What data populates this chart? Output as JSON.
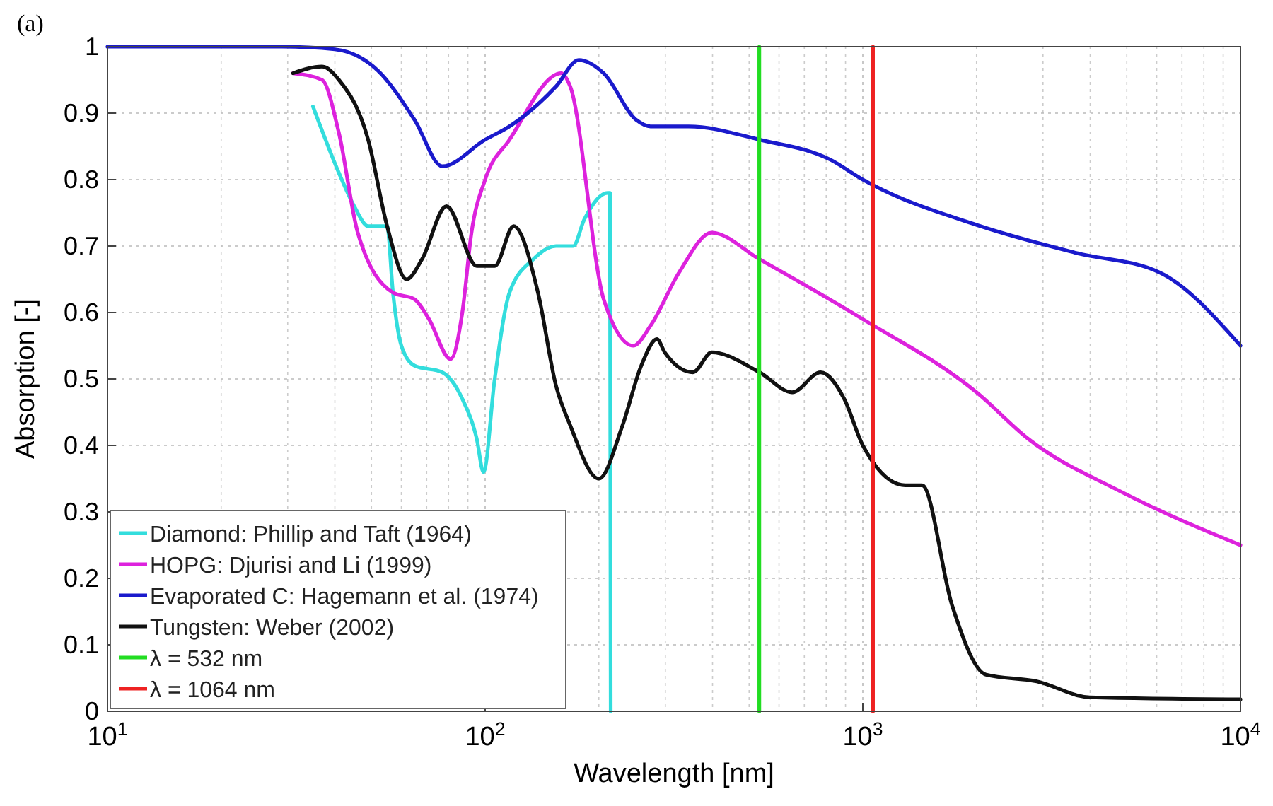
{
  "chart_data": {
    "type": "line",
    "xlabel": "Wavelength [nm]",
    "ylabel": "Absorption [-]",
    "annotations": [
      "(a)"
    ],
    "log": "x",
    "grid": true,
    "legend": "bottom left",
    "line_style": "solid",
    "marker": "none",
    "xlim": [
      10,
      10000
    ],
    "xticks": [
      {
        "value": 10,
        "label": "10$^{1}$"
      },
      {
        "value": 100,
        "label": "10$^{2}$"
      },
      {
        "value": 1000,
        "label": "10$^{3}$"
      },
      {
        "value": 10000,
        "label": "10$^{4}$"
      }
    ],
    "ylim": [
      0,
      1
    ],
    "yticks": [
      0,
      0.1,
      0.2,
      0.3,
      0.4,
      0.5,
      0.6,
      0.7,
      0.8,
      0.9,
      1
    ],
    "series": [
      {
        "name": "Diamond: Phillip and Taft (1964)",
        "color": "#33dddd",
        "x": [
          35,
          41,
          45,
          49,
          55,
          57,
          60,
          65,
          77,
          87,
          95,
          99,
          106,
          116,
          134,
          154,
          171,
          183,
          211,
          214,
          215
        ],
        "values": [
          0.91,
          0.81,
          0.76,
          0.73,
          0.73,
          0.63,
          0.55,
          0.52,
          0.51,
          0.47,
          0.41,
          0.36,
          0.5,
          0.63,
          0.68,
          0.7,
          0.7,
          0.74,
          0.78,
          0.78,
          0
        ]
      },
      {
        "name": "HOPG: Djurisi and Li (1999)",
        "color": "#dd22dd",
        "x": [
          31,
          37,
          41,
          46,
          57,
          65,
          71,
          81,
          87,
          92,
          100,
          116,
          159,
          168,
          206,
          247,
          274,
          326,
          398,
          533,
          1000,
          2000,
          2740,
          4840,
          10000
        ],
        "values": [
          0.96,
          0.95,
          0.87,
          0.72,
          0.63,
          0.62,
          0.59,
          0.53,
          0.6,
          0.72,
          0.8,
          0.86,
          0.96,
          0.94,
          0.62,
          0.55,
          0.58,
          0.66,
          0.72,
          0.68,
          0.59,
          0.48,
          0.41,
          0.33,
          0.25
        ]
      },
      {
        "name": "Evaporated C: Hagemann et al. (1974)",
        "color": "#1a1acc",
        "x": [
          10,
          29,
          40,
          52,
          65,
          77,
          100,
          116,
          154,
          177,
          206,
          251,
          274,
          346,
          533,
          820,
          1000,
          2046,
          3650,
          6120,
          10000
        ],
        "values": [
          1,
          1,
          0.996,
          0.964,
          0.89,
          0.82,
          0.86,
          0.88,
          0.94,
          0.98,
          0.96,
          0.89,
          0.88,
          0.88,
          0.86,
          0.83,
          0.8,
          0.73,
          0.69,
          0.66,
          0.55
        ]
      },
      {
        "name": "Tungsten: Weber (2002)",
        "color": "#111111",
        "x": [
          31,
          37,
          41,
          49,
          55,
          62,
          68,
          79,
          95,
          106,
          119,
          138,
          154,
          168,
          200,
          231,
          259,
          285,
          299,
          355,
          398,
          533,
          650,
          773,
          893,
          1000,
          1295,
          1435,
          1722,
          2120,
          2890,
          3990,
          10000
        ],
        "values": [
          0.96,
          0.97,
          0.95,
          0.86,
          0.73,
          0.65,
          0.68,
          0.76,
          0.67,
          0.67,
          0.73,
          0.63,
          0.49,
          0.43,
          0.35,
          0.43,
          0.52,
          0.56,
          0.54,
          0.51,
          0.54,
          0.51,
          0.48,
          0.51,
          0.47,
          0.4,
          0.34,
          0.34,
          0.16,
          0.055,
          0.045,
          0.021,
          0.018
        ]
      },
      {
        "name": "λ = 532 nm",
        "color": "#22dd22",
        "x": [
          532,
          532
        ],
        "values": [
          0,
          1
        ]
      },
      {
        "name": "λ = 1064 nm",
        "color": "#ee2222",
        "x": [
          1064,
          1064
        ],
        "values": [
          0,
          1
        ]
      }
    ]
  }
}
